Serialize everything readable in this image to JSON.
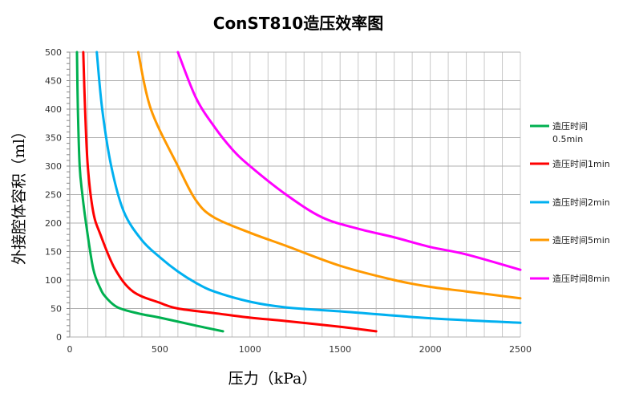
{
  "chart_data": {
    "type": "line",
    "title": "ConST810造压效率图",
    "xlabel": "压力（kPa）",
    "ylabel": "外接腔体容积（ml）",
    "xlim": [
      0,
      2500
    ],
    "ylim": [
      0,
      500
    ],
    "xticks": [
      0,
      500,
      1000,
      1500,
      2000,
      2500
    ],
    "yticks": [
      0,
      50,
      100,
      150,
      200,
      250,
      300,
      350,
      400,
      450,
      500
    ],
    "grid": true,
    "legend_position": "right",
    "series": [
      {
        "name": "造压时间0.5min",
        "color": "#00b050",
        "points": [
          [
            40,
            500
          ],
          [
            45,
            400
          ],
          [
            55,
            300
          ],
          [
            70,
            250
          ],
          [
            90,
            200
          ],
          [
            130,
            120
          ],
          [
            170,
            85
          ],
          [
            200,
            70
          ],
          [
            250,
            55
          ],
          [
            300,
            48
          ],
          [
            400,
            40
          ],
          [
            500,
            34
          ],
          [
            700,
            20
          ],
          [
            850,
            10
          ]
        ]
      },
      {
        "name": "造压时间1min",
        "color": "#ff0000",
        "points": [
          [
            75,
            500
          ],
          [
            85,
            400
          ],
          [
            100,
            300
          ],
          [
            130,
            220
          ],
          [
            170,
            180
          ],
          [
            250,
            120
          ],
          [
            350,
            80
          ],
          [
            500,
            60
          ],
          [
            600,
            50
          ],
          [
            800,
            42
          ],
          [
            1000,
            34
          ],
          [
            1200,
            28
          ],
          [
            1500,
            18
          ],
          [
            1700,
            10
          ]
        ]
      },
      {
        "name": "造压时间2min",
        "color": "#00b0f0",
        "points": [
          [
            150,
            500
          ],
          [
            180,
            400
          ],
          [
            230,
            300
          ],
          [
            300,
            220
          ],
          [
            400,
            170
          ],
          [
            500,
            140
          ],
          [
            600,
            115
          ],
          [
            700,
            95
          ],
          [
            800,
            80
          ],
          [
            1000,
            62
          ],
          [
            1200,
            52
          ],
          [
            1500,
            45
          ],
          [
            2000,
            33
          ],
          [
            2500,
            25
          ]
        ]
      },
      {
        "name": "造压时间5min",
        "color": "#ff9900",
        "points": [
          [
            380,
            500
          ],
          [
            450,
            400
          ],
          [
            600,
            300
          ],
          [
            700,
            240
          ],
          [
            800,
            210
          ],
          [
            1000,
            183
          ],
          [
            1200,
            160
          ],
          [
            1500,
            125
          ],
          [
            1800,
            100
          ],
          [
            2000,
            88
          ],
          [
            2200,
            80
          ],
          [
            2500,
            68
          ]
        ]
      },
      {
        "name": "造压时间8min",
        "color": "#ff00ff",
        "points": [
          [
            600,
            500
          ],
          [
            700,
            420
          ],
          [
            800,
            370
          ],
          [
            900,
            330
          ],
          [
            1000,
            300
          ],
          [
            1200,
            250
          ],
          [
            1400,
            210
          ],
          [
            1600,
            190
          ],
          [
            1800,
            175
          ],
          [
            2000,
            158
          ],
          [
            2200,
            145
          ],
          [
            2500,
            118
          ]
        ]
      }
    ]
  }
}
